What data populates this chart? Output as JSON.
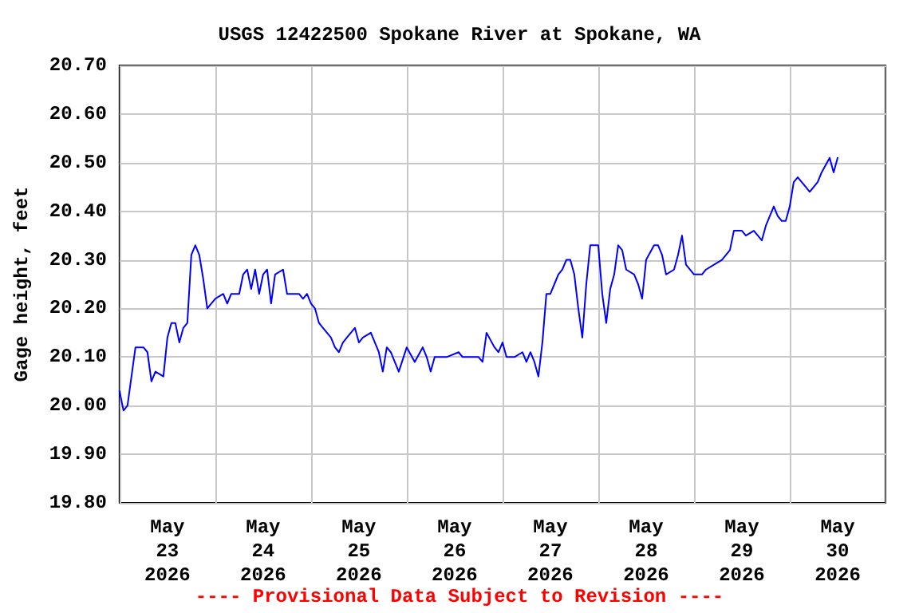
{
  "chart_data": {
    "type": "line",
    "title": "USGS 12422500 Spokane River at Spokane, WA",
    "ylabel": "Gage height, feet",
    "annotations": [
      "---- Provisional Data Subject to Revision ----"
    ],
    "x": [
      "2026-05-23T00:00",
      "2026-05-23T01:00",
      "2026-05-23T02:00",
      "2026-05-23T03:00",
      "2026-05-23T04:00",
      "2026-05-23T06:00",
      "2026-05-23T07:00",
      "2026-05-23T08:00",
      "2026-05-23T09:00",
      "2026-05-23T11:00",
      "2026-05-23T12:00",
      "2026-05-23T13:00",
      "2026-05-23T14:00",
      "2026-05-23T15:00",
      "2026-05-23T16:00",
      "2026-05-23T17:00",
      "2026-05-23T18:00",
      "2026-05-23T19:00",
      "2026-05-23T20:00",
      "2026-05-23T21:00",
      "2026-05-23T22:00",
      "2026-05-23T23:00",
      "2026-05-24T00:00",
      "2026-05-24T02:00",
      "2026-05-24T03:00",
      "2026-05-24T04:00",
      "2026-05-24T06:00",
      "2026-05-24T07:00",
      "2026-05-24T08:00",
      "2026-05-24T09:00",
      "2026-05-24T10:00",
      "2026-05-24T11:00",
      "2026-05-24T12:00",
      "2026-05-24T13:00",
      "2026-05-24T14:00",
      "2026-05-24T15:00",
      "2026-05-24T17:00",
      "2026-05-24T18:00",
      "2026-05-24T21:00",
      "2026-05-24T22:00",
      "2026-05-24T23:00",
      "2026-05-25T00:00",
      "2026-05-25T01:00",
      "2026-05-25T02:00",
      "2026-05-25T03:00",
      "2026-05-25T05:00",
      "2026-05-25T06:00",
      "2026-05-25T07:00",
      "2026-05-25T08:00",
      "2026-05-25T09:00",
      "2026-05-25T11:00",
      "2026-05-25T12:00",
      "2026-05-25T13:00",
      "2026-05-25T15:00",
      "2026-05-25T17:00",
      "2026-05-25T18:00",
      "2026-05-25T19:00",
      "2026-05-25T20:00",
      "2026-05-25T22:00",
      "2026-05-26T00:00",
      "2026-05-26T02:00",
      "2026-05-26T04:00",
      "2026-05-26T05:00",
      "2026-05-26T06:00",
      "2026-05-26T07:00",
      "2026-05-26T10:00",
      "2026-05-26T13:00",
      "2026-05-26T14:00",
      "2026-05-26T17:00",
      "2026-05-26T18:00",
      "2026-05-26T19:00",
      "2026-05-26T20:00",
      "2026-05-26T22:00",
      "2026-05-26T23:00",
      "2026-05-27T00:00",
      "2026-05-27T01:00",
      "2026-05-27T03:00",
      "2026-05-27T05:00",
      "2026-05-27T06:00",
      "2026-05-27T07:00",
      "2026-05-27T08:00",
      "2026-05-27T09:00",
      "2026-05-27T10:00",
      "2026-05-27T11:00",
      "2026-05-27T12:00",
      "2026-05-27T13:00",
      "2026-05-27T14:00",
      "2026-05-27T15:00",
      "2026-05-27T16:00",
      "2026-05-27T17:00",
      "2026-05-27T18:00",
      "2026-05-27T19:00",
      "2026-05-27T20:00",
      "2026-05-27T21:00",
      "2026-05-27T22:00",
      "2026-05-28T00:00",
      "2026-05-28T01:00",
      "2026-05-28T02:00",
      "2026-05-28T03:00",
      "2026-05-28T04:00",
      "2026-05-28T05:00",
      "2026-05-28T06:00",
      "2026-05-28T07:00",
      "2026-05-28T09:00",
      "2026-05-28T10:00",
      "2026-05-28T11:00",
      "2026-05-28T12:00",
      "2026-05-28T14:00",
      "2026-05-28T15:00",
      "2026-05-28T16:00",
      "2026-05-28T17:00",
      "2026-05-28T19:00",
      "2026-05-28T20:00",
      "2026-05-28T21:00",
      "2026-05-28T22:00",
      "2026-05-29T00:00",
      "2026-05-29T02:00",
      "2026-05-29T03:00",
      "2026-05-29T05:00",
      "2026-05-29T07:00",
      "2026-05-29T09:00",
      "2026-05-29T10:00",
      "2026-05-29T12:00",
      "2026-05-29T13:00",
      "2026-05-29T15:00",
      "2026-05-29T17:00",
      "2026-05-29T18:00",
      "2026-05-29T20:00",
      "2026-05-29T21:00",
      "2026-05-29T22:00",
      "2026-05-29T23:00",
      "2026-05-30T00:00",
      "2026-05-30T01:00",
      "2026-05-30T02:00",
      "2026-05-30T04:00",
      "2026-05-30T05:00",
      "2026-05-30T07:00",
      "2026-05-30T08:00",
      "2026-05-30T10:00",
      "2026-05-30T11:00",
      "2026-05-30T12:00"
    ],
    "series": [
      {
        "color": "#0000ff",
        "values": [
          20.03,
          19.99,
          20.0,
          20.06,
          20.12,
          20.12,
          20.11,
          20.05,
          20.07,
          20.06,
          20.14,
          20.17,
          20.17,
          20.13,
          20.16,
          20.17,
          20.31,
          20.33,
          20.31,
          20.26,
          20.2,
          20.21,
          20.22,
          20.23,
          20.21,
          20.23,
          20.23,
          20.27,
          20.28,
          20.24,
          20.28,
          20.23,
          20.27,
          20.28,
          20.21,
          20.27,
          20.28,
          20.23,
          20.23,
          20.22,
          20.23,
          20.21,
          20.2,
          20.17,
          20.16,
          20.14,
          20.12,
          20.11,
          20.13,
          20.14,
          20.16,
          20.13,
          20.14,
          20.15,
          20.11,
          20.07,
          20.12,
          20.11,
          20.07,
          20.12,
          20.09,
          20.12,
          20.1,
          20.07,
          20.1,
          20.1,
          20.11,
          20.1,
          20.1,
          20.1,
          20.09,
          20.15,
          20.12,
          20.11,
          20.13,
          20.1,
          20.1,
          20.11,
          20.09,
          20.11,
          20.09,
          20.06,
          20.13,
          20.23,
          20.23,
          20.25,
          20.27,
          20.28,
          20.3,
          20.3,
          20.27,
          20.2,
          20.14,
          20.25,
          20.33,
          20.33,
          20.23,
          20.17,
          20.24,
          20.27,
          20.33,
          20.32,
          20.28,
          20.27,
          20.25,
          20.22,
          20.3,
          20.33,
          20.33,
          20.31,
          20.27,
          20.28,
          20.31,
          20.35,
          20.29,
          20.27,
          20.27,
          20.28,
          20.29,
          20.3,
          20.32,
          20.36,
          20.36,
          20.35,
          20.36,
          20.34,
          20.37,
          20.41,
          20.39,
          20.38,
          20.38,
          20.41,
          20.46,
          20.47,
          20.45,
          20.44,
          20.46,
          20.48,
          20.51,
          20.48,
          20.51
        ]
      }
    ],
    "xlim": [
      "2026-05-23T00:00",
      "2026-05-31T00:00"
    ],
    "xticks": [
      {
        "value": "2026-05-23T00:00",
        "label": null
      },
      {
        "value": "2026-05-23T12:00",
        "label": "May\n23\n2026"
      },
      {
        "value": "2026-05-24T00:00",
        "label": null
      },
      {
        "value": "2026-05-24T12:00",
        "label": "May\n24\n2026"
      },
      {
        "value": "2026-05-25T00:00",
        "label": null
      },
      {
        "value": "2026-05-25T12:00",
        "label": "May\n25\n2026"
      },
      {
        "value": "2026-05-26T00:00",
        "label": null
      },
      {
        "value": "2026-05-26T12:00",
        "label": "May\n26\n2026"
      },
      {
        "value": "2026-05-27T00:00",
        "label": null
      },
      {
        "value": "2026-05-27T12:00",
        "label": "May\n27\n2026"
      },
      {
        "value": "2026-05-28T00:00",
        "label": null
      },
      {
        "value": "2026-05-28T12:00",
        "label": "May\n28\n2026"
      },
      {
        "value": "2026-05-29T00:00",
        "label": null
      },
      {
        "value": "2026-05-29T12:00",
        "label": "May\n29\n2026"
      },
      {
        "value": "2026-05-30T00:00",
        "label": null
      },
      {
        "value": "2026-05-30T12:00",
        "label": "May\n30\n2026"
      },
      {
        "value": "2026-05-31T00:00",
        "label": null
      }
    ],
    "ylim": [
      19.8,
      20.7
    ],
    "yticks": [
      {
        "value": 19.8,
        "label": "19.80"
      },
      {
        "value": 19.9,
        "label": "19.90"
      },
      {
        "value": 20.0,
        "label": "20.00"
      },
      {
        "value": 20.1,
        "label": "20.10"
      },
      {
        "value": 20.2,
        "label": "20.20"
      },
      {
        "value": 20.3,
        "label": "20.30"
      },
      {
        "value": 20.4,
        "label": "20.40"
      },
      {
        "value": 20.5,
        "label": "20.50"
      },
      {
        "value": 20.6,
        "label": "20.60"
      },
      {
        "value": 20.7,
        "label": "20.70"
      }
    ],
    "grid": true,
    "marker": "none",
    "line_style": "solid"
  }
}
